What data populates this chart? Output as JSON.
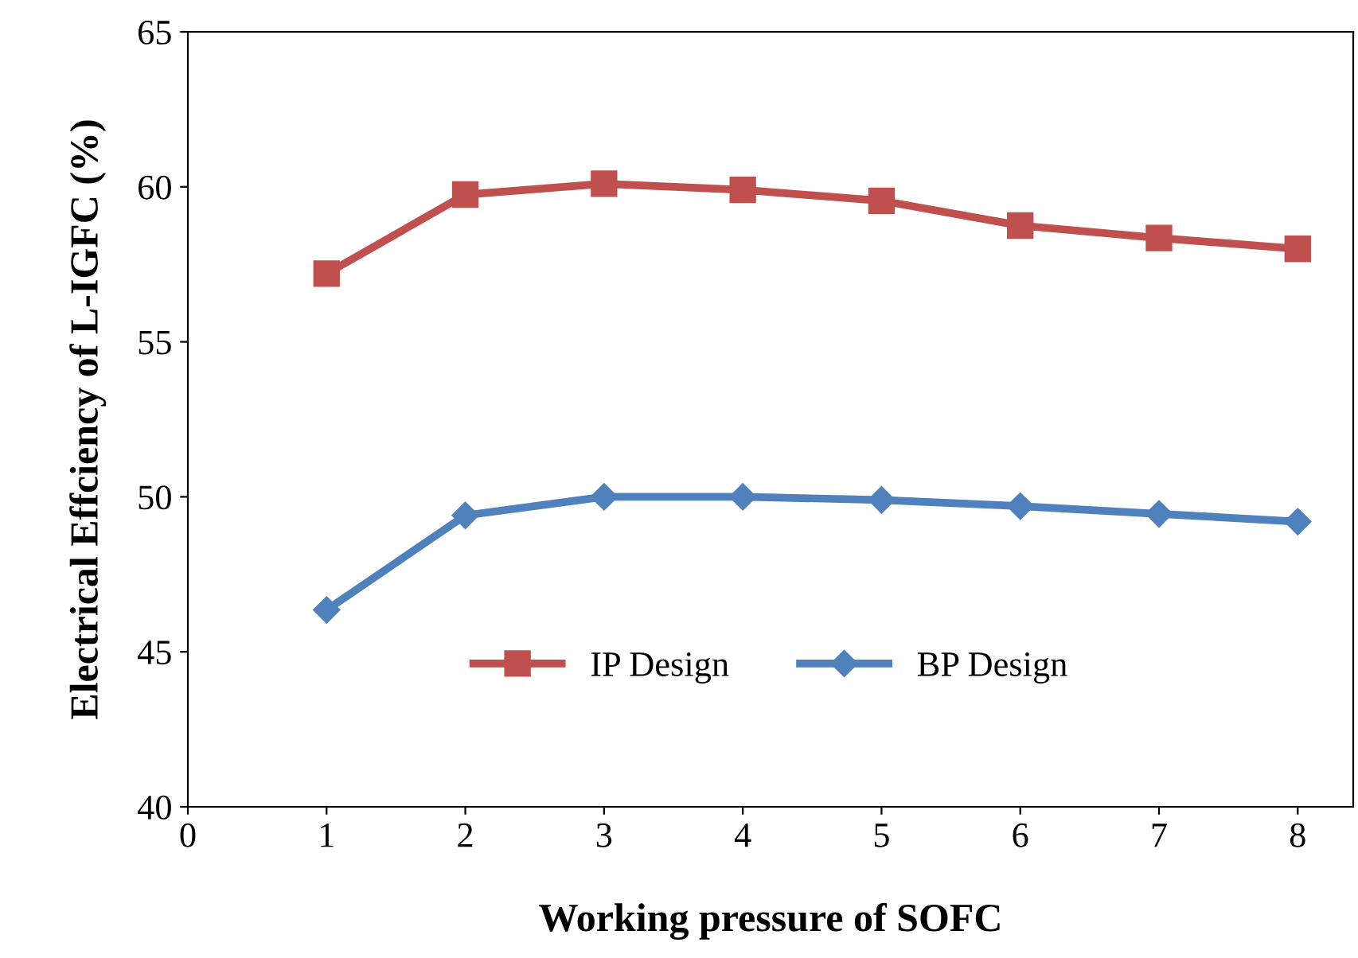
{
  "chart_data": {
    "type": "line",
    "xlabel": "Working pressure of SOFC",
    "ylabel": "Electrical Effciency of L-IGFC (%)",
    "x": [
      1,
      2,
      3,
      4,
      5,
      6,
      7,
      8
    ],
    "series": [
      {
        "name": "IP Design",
        "color": "#c0504d",
        "marker": "square",
        "values": [
          57.2,
          59.75,
          60.1,
          59.9,
          59.55,
          58.75,
          58.35,
          58.0
        ]
      },
      {
        "name": "BP Design",
        "color": "#4f81bd",
        "marker": "diamond",
        "values": [
          46.35,
          49.4,
          50.0,
          50.0,
          49.9,
          49.7,
          49.45,
          49.2
        ]
      }
    ],
    "xlim": [
      0,
      8.4
    ],
    "xticks": [
      0,
      1,
      2,
      3,
      4,
      5,
      6,
      7,
      8
    ],
    "ylim": [
      40,
      65
    ],
    "yticks": [
      40,
      45,
      50,
      55,
      60,
      65
    ],
    "grid": false,
    "legend": "center",
    "line_style": "solid"
  }
}
